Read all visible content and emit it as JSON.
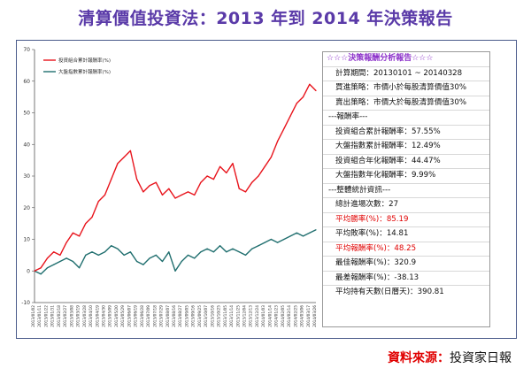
{
  "title": "清算價值投資法：2013 年到 2014 年決策報告",
  "panel": {
    "rows": [
      {
        "text": "☆☆☆決策報酬分析報告☆☆☆",
        "style": "head"
      },
      {
        "text": "計算期間：20130101 ~ 20140328",
        "style": "indent"
      },
      {
        "text": "買進策略：市價小於每股清算價值30%",
        "style": "indent"
      },
      {
        "text": "賣出策略：市價大於每股清算價值30%",
        "style": "indent"
      },
      {
        "text": "---報酬率---",
        "style": ""
      },
      {
        "text": "投資組合累計報酬率：57.55%",
        "style": "indent"
      },
      {
        "text": "大盤指數累計報酬率：12.49%",
        "style": "indent"
      },
      {
        "text": "投資組合年化報酬率：44.47%",
        "style": "indent"
      },
      {
        "text": "大盤指數年化報酬率：9.99%",
        "style": "indent"
      },
      {
        "text": "---整體統計資訊---",
        "style": ""
      },
      {
        "text": "總計進場次數：27",
        "style": "indent"
      },
      {
        "text": "平均勝率(%)：85.19",
        "style": "indent red"
      },
      {
        "text": "平均敗率(%)：14.81",
        "style": "indent"
      },
      {
        "text": "平均報酬率(%)：48.25",
        "style": "indent red"
      },
      {
        "text": "最佳報酬率(%)：320.9",
        "style": "indent"
      },
      {
        "text": "最差報酬率(%)：-38.13",
        "style": "indent"
      },
      {
        "text": "平均持有天數(日曆天)：390.81",
        "style": "indent"
      }
    ]
  },
  "source": {
    "label": "資料來源：",
    "value": "投資家日報"
  },
  "chart_data": {
    "type": "line",
    "ylim": [
      -10,
      70
    ],
    "yticks": [
      -10,
      0,
      10,
      20,
      30,
      40,
      50,
      60,
      70
    ],
    "grid": false,
    "legend_placement": "top-left",
    "x": [
      "2013/01/02",
      "2013/01/11",
      "2013/01/22",
      "2013/01/31",
      "2013/02/18",
      "2013/02/27",
      "2013/03/08",
      "2013/03/19",
      "2013/03/28",
      "2013/04/10",
      "2013/04/19",
      "2013/04/30",
      "2013/05/09",
      "2013/05/20",
      "2013/05/29",
      "2013/06/07",
      "2013/06/19",
      "2013/06/28",
      "2013/07/09",
      "2013/07/18",
      "2013/07/29",
      "2013/08/07",
      "2013/08/16",
      "2013/08/27",
      "2013/09/05",
      "2013/09/16",
      "2013/09/25",
      "2013/10/07",
      "2013/10/16",
      "2013/10/25",
      "2013/11/05",
      "2013/11/14",
      "2013/11/25",
      "2013/12/04",
      "2013/12/13",
      "2013/12/24",
      "2014/01/03",
      "2014/01/14",
      "2014/01/23",
      "2014/02/05",
      "2014/02/14",
      "2014/02/25",
      "2014/03/06",
      "2014/03/17",
      "2014/03/26"
    ],
    "series": [
      {
        "name": "投資組合累計報酬率(%)",
        "color": "#e8141c",
        "values": [
          0,
          1,
          4,
          6,
          5,
          9,
          12,
          11,
          15,
          17,
          22,
          24,
          29,
          34,
          36,
          38,
          29,
          25,
          27,
          28,
          24,
          26,
          23,
          24,
          25,
          24,
          28,
          30,
          29,
          33,
          31,
          34,
          26,
          25,
          28,
          30,
          33,
          36,
          41,
          45,
          49,
          53,
          55,
          59,
          57
        ]
      },
      {
        "name": "大盤指數累計報酬率(%)",
        "color": "#1f6e6e",
        "values": [
          0,
          -1,
          1,
          2,
          3,
          4,
          3,
          1,
          5,
          6,
          5,
          6,
          8,
          7,
          5,
          6,
          3,
          2,
          4,
          5,
          3,
          6,
          0,
          3,
          5,
          4,
          6,
          7,
          6,
          8,
          6,
          7,
          6,
          5,
          7,
          8,
          9,
          10,
          9,
          10,
          11,
          12,
          11,
          12,
          13
        ]
      }
    ]
  }
}
